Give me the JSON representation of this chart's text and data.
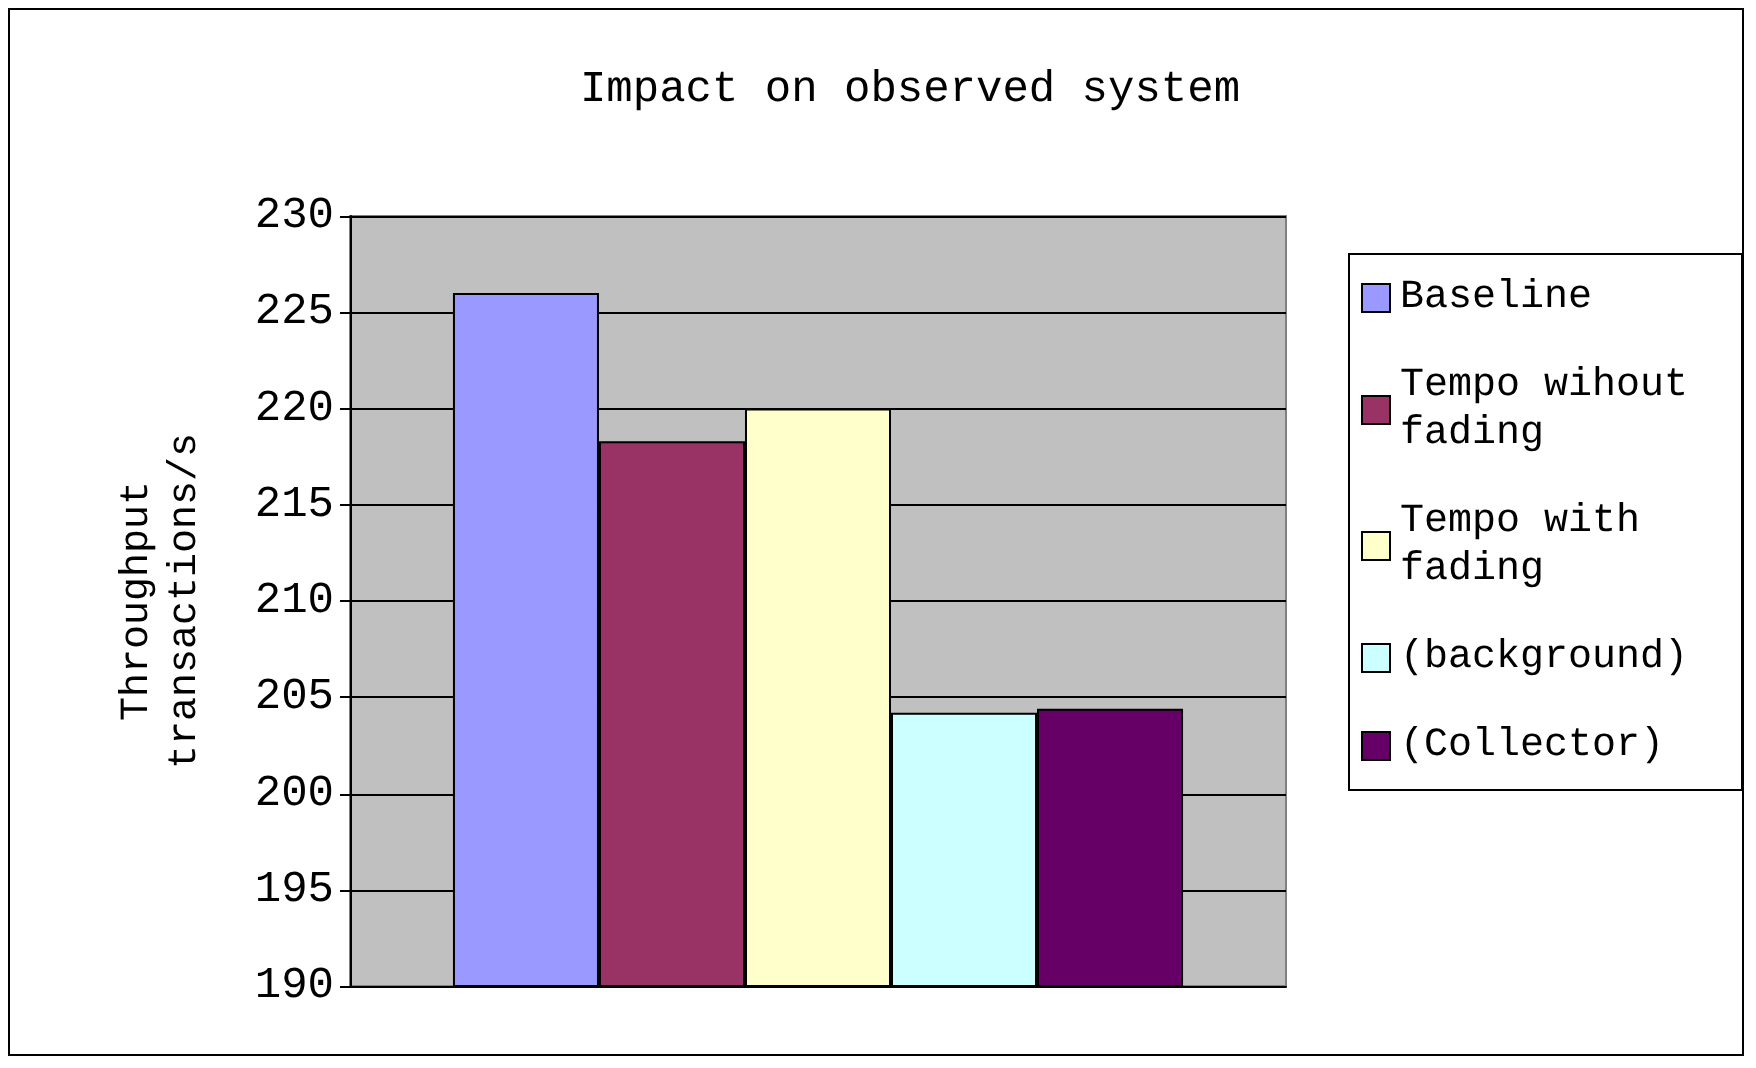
{
  "chart_data": {
    "type": "bar",
    "title": "Impact on observed system",
    "ylabel": "Throughput\ntransactions/s",
    "categories": [
      null
    ],
    "series": [
      {
        "name": "Baseline",
        "color": "#9999ff",
        "values": [
          226
        ]
      },
      {
        "name": "Tempo wihout fading",
        "color": "#993366",
        "values": [
          218.3
        ]
      },
      {
        "name": "Tempo with fading",
        "color": "#ffffcc",
        "values": [
          220
        ]
      },
      {
        "name": "(background)",
        "color": "#ccffff",
        "values": [
          204.2
        ]
      },
      {
        "name": "(Collector)",
        "color": "#660066",
        "values": [
          204.4
        ]
      }
    ],
    "ylim": [
      190,
      230
    ],
    "yticks": [
      190,
      195,
      200,
      205,
      210,
      215,
      220,
      225,
      230
    ],
    "grid": "y",
    "legend": "right"
  }
}
